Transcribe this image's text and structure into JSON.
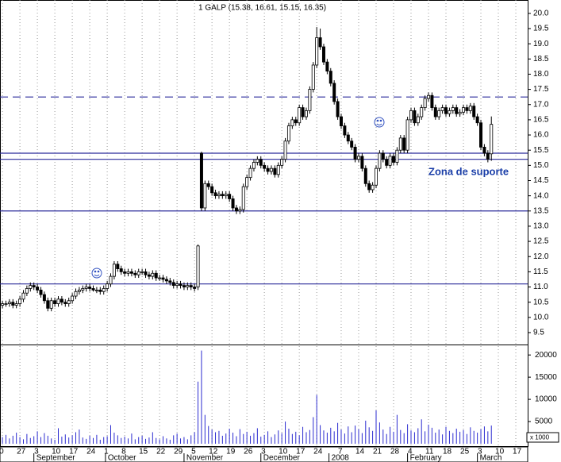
{
  "chart_data": {
    "type": "candlestick",
    "title": "1 GALP (15.38, 16.61, 15.15, 16.35)",
    "open": [
      10.4,
      10.45,
      10.45,
      10.5,
      10.4,
      10.45,
      10.6,
      10.8,
      10.95,
      11.05,
      11.0,
      10.9,
      10.75,
      10.55,
      10.3,
      10.55,
      10.45,
      10.6,
      10.5,
      10.45,
      10.55,
      10.7,
      10.85,
      10.9,
      10.95,
      11.0,
      10.95,
      10.9,
      10.9,
      10.85,
      10.95,
      11.1,
      11.35,
      11.75,
      11.6,
      11.5,
      11.45,
      11.5,
      11.45,
      11.4,
      11.5,
      11.5,
      11.4,
      11.35,
      11.45,
      11.3,
      11.3,
      11.25,
      11.2,
      11.15,
      11.05,
      11.1,
      11.05,
      11.0,
      11.05,
      11.0,
      11.0,
      15.4,
      13.6,
      14.4,
      14.3,
      14.1,
      14.0,
      14.05,
      14.0,
      14.05,
      13.9,
      13.6,
      13.5,
      13.55,
      14.3,
      14.6,
      14.9,
      15.1,
      15.2,
      15.0,
      14.9,
      14.8,
      14.9,
      14.7,
      15.0,
      15.2,
      15.8,
      16.3,
      16.5,
      16.4,
      16.9,
      16.6,
      16.8,
      17.5,
      18.3,
      19.2,
      18.9,
      18.4,
      18.1,
      17.7,
      17.1,
      16.6,
      16.3,
      16.0,
      15.8,
      15.6,
      15.2,
      15.3,
      14.9,
      14.4,
      14.2,
      14.35,
      14.9,
      15.4,
      15.2,
      15.0,
      15.3,
      15.1,
      15.5,
      15.9,
      15.5,
      16.5,
      16.8,
      16.4,
      16.6,
      16.9,
      17.2,
      17.3,
      16.9,
      16.6,
      16.8,
      16.9,
      16.7,
      16.8,
      16.9,
      16.7,
      16.75,
      16.9,
      16.8,
      16.95,
      16.6,
      16.4,
      15.6,
      15.4,
      15.38
    ],
    "high": [
      10.55,
      10.55,
      10.6,
      10.6,
      10.55,
      10.7,
      10.9,
      11.05,
      11.15,
      11.15,
      11.1,
      11.0,
      10.85,
      10.65,
      10.65,
      10.65,
      10.7,
      10.7,
      10.6,
      10.65,
      10.8,
      10.95,
      11.0,
      11.05,
      11.1,
      11.1,
      11.05,
      11.0,
      11.0,
      11.05,
      11.2,
      11.45,
      11.85,
      11.85,
      11.7,
      11.6,
      11.6,
      11.6,
      11.55,
      11.6,
      11.6,
      11.6,
      11.5,
      11.55,
      11.55,
      11.4,
      11.4,
      11.35,
      11.3,
      11.25,
      11.2,
      11.2,
      11.15,
      11.15,
      11.15,
      11.1,
      12.4,
      15.45,
      14.5,
      14.5,
      14.4,
      14.2,
      14.15,
      14.15,
      14.15,
      14.15,
      14.0,
      13.7,
      13.65,
      14.4,
      14.7,
      15.0,
      15.2,
      15.3,
      15.3,
      15.1,
      15.0,
      15.0,
      15.0,
      15.1,
      15.3,
      15.9,
      16.4,
      16.6,
      16.6,
      17.0,
      17.0,
      16.9,
      17.6,
      18.4,
      19.55,
      19.5,
      19.0,
      18.5,
      18.2,
      17.8,
      17.2,
      16.7,
      16.4,
      16.1,
      15.9,
      15.7,
      15.4,
      15.4,
      15.0,
      14.5,
      14.45,
      15.0,
      15.5,
      15.5,
      15.3,
      15.4,
      15.4,
      15.6,
      16.0,
      16.0,
      16.6,
      16.9,
      16.9,
      16.7,
      17.0,
      17.3,
      17.4,
      17.4,
      17.0,
      16.9,
      17.0,
      17.0,
      16.9,
      17.0,
      17.0,
      16.85,
      17.0,
      17.0,
      17.05,
      17.05,
      16.7,
      16.5,
      15.7,
      15.5,
      16.61
    ],
    "low": [
      10.3,
      10.35,
      10.35,
      10.3,
      10.3,
      10.35,
      10.5,
      10.7,
      10.85,
      10.9,
      10.8,
      10.65,
      10.45,
      10.2,
      10.2,
      10.35,
      10.35,
      10.4,
      10.35,
      10.35,
      10.45,
      10.6,
      10.75,
      10.8,
      10.85,
      10.85,
      10.85,
      10.8,
      10.75,
      10.75,
      10.85,
      11.0,
      11.25,
      11.5,
      11.4,
      11.35,
      11.35,
      11.35,
      11.3,
      11.3,
      11.4,
      11.3,
      11.25,
      11.25,
      11.2,
      11.2,
      11.15,
      11.1,
      11.05,
      10.95,
      10.95,
      10.95,
      10.9,
      10.9,
      10.9,
      10.85,
      10.9,
      13.5,
      13.5,
      14.2,
      14.0,
      13.9,
      13.9,
      13.9,
      13.9,
      13.8,
      13.5,
      13.4,
      13.4,
      13.45,
      14.2,
      14.5,
      14.8,
      15.0,
      14.9,
      14.8,
      14.7,
      14.7,
      14.6,
      14.6,
      14.9,
      15.1,
      15.7,
      16.2,
      16.3,
      16.3,
      16.5,
      16.5,
      16.7,
      17.4,
      18.2,
      18.8,
      18.3,
      18.0,
      17.6,
      17.0,
      16.5,
      16.2,
      15.9,
      15.7,
      15.5,
      15.1,
      15.1,
      14.8,
      14.3,
      14.1,
      14.1,
      14.25,
      14.8,
      15.1,
      14.9,
      14.9,
      15.0,
      15.0,
      15.4,
      15.4,
      15.4,
      16.4,
      16.3,
      16.3,
      16.5,
      16.8,
      17.1,
      16.8,
      16.5,
      16.5,
      16.7,
      16.6,
      16.6,
      16.7,
      16.6,
      16.6,
      16.65,
      16.7,
      16.7,
      16.5,
      16.3,
      15.5,
      15.3,
      15.1,
      15.15
    ],
    "close": [
      10.45,
      10.45,
      10.5,
      10.4,
      10.45,
      10.6,
      10.8,
      10.95,
      11.05,
      11.0,
      10.9,
      10.75,
      10.55,
      10.3,
      10.55,
      10.45,
      10.6,
      10.5,
      10.45,
      10.55,
      10.7,
      10.85,
      10.9,
      10.95,
      11.0,
      10.95,
      10.9,
      10.9,
      10.85,
      10.95,
      11.1,
      11.35,
      11.75,
      11.6,
      11.5,
      11.45,
      11.5,
      11.45,
      11.4,
      11.5,
      11.5,
      11.4,
      11.35,
      11.45,
      11.3,
      11.3,
      11.25,
      11.2,
      11.15,
      11.05,
      11.1,
      11.05,
      11.0,
      11.05,
      11.0,
      10.95,
      12.35,
      13.6,
      14.4,
      14.3,
      14.1,
      14.0,
      14.05,
      14.0,
      14.05,
      13.9,
      13.6,
      13.5,
      13.55,
      14.3,
      14.6,
      14.9,
      15.1,
      15.2,
      15.0,
      14.9,
      14.8,
      14.9,
      14.7,
      15.0,
      15.2,
      15.8,
      16.3,
      16.5,
      16.4,
      16.9,
      16.6,
      16.8,
      17.5,
      18.3,
      19.2,
      18.9,
      18.4,
      18.1,
      17.7,
      17.1,
      16.6,
      16.3,
      16.0,
      15.8,
      15.6,
      15.2,
      15.3,
      14.9,
      14.4,
      14.2,
      14.35,
      14.9,
      15.4,
      15.2,
      15.0,
      15.3,
      15.1,
      15.5,
      15.9,
      15.5,
      16.5,
      16.8,
      16.4,
      16.6,
      16.9,
      17.2,
      17.3,
      16.9,
      16.6,
      16.8,
      16.9,
      16.7,
      16.8,
      16.9,
      16.7,
      16.75,
      16.9,
      16.8,
      16.95,
      16.6,
      16.4,
      15.6,
      15.4,
      15.2,
      16.35
    ],
    "volume": [
      1500,
      2000,
      1200,
      1800,
      2500,
      1500,
      1000,
      2200,
      1300,
      1700,
      2800,
      1500,
      2400,
      1800,
      1200,
      900,
      3500,
      1600,
      2100,
      1400,
      1900,
      2600,
      3200,
      1400,
      1100,
      1800,
      1300,
      2000,
      900,
      1500,
      1700,
      4200,
      2500,
      1900,
      1300,
      1600,
      1200,
      2300,
      1000,
      1500,
      1800,
      1100,
      1400,
      2600,
      1300,
      1000,
      1700,
      1200,
      900,
      1900,
      2300,
      1200,
      1500,
      1000,
      1900,
      2600,
      14000,
      21000,
      6500,
      4000,
      3200,
      2600,
      2900,
      1800,
      2300,
      3400,
      2500,
      1700,
      3300,
      2200,
      2700,
      1800,
      2400,
      3500,
      1600,
      2000,
      2800,
      1500,
      2100,
      3000,
      2400,
      5000,
      3400,
      2200,
      2700,
      1900,
      3800,
      2600,
      3100,
      6000,
      11000,
      4200,
      3000,
      2500,
      3600,
      2800,
      4700,
      3200,
      2300,
      3900,
      2600,
      4100,
      3300,
      2400,
      5200,
      3700,
      2900,
      7500,
      4800,
      3200,
      2200,
      3800,
      2700,
      6500,
      3100,
      2400,
      4400,
      3000,
      2600,
      3500,
      5500,
      2800,
      4300,
      3600,
      2500,
      3200,
      2100,
      3800,
      2900,
      2400,
      3400,
      2700,
      3100,
      2200,
      3700,
      2900,
      2500,
      3300,
      3900,
      2800,
      4100
    ],
    "up_color": "#ffffff",
    "down_color": "#000000",
    "volume_color": "#2b2bd0",
    "level_color": "#2a2a9a",
    "xlim": [
      -0.7,
      150.4
    ],
    "xticks": [
      {
        "value": 0,
        "label": "0"
      },
      {
        "value": 5,
        "label": "27"
      },
      {
        "value": 10,
        "label": "3"
      },
      {
        "value": 15,
        "label": "10"
      },
      {
        "value": 20,
        "label": "17"
      },
      {
        "value": 25,
        "label": "24"
      },
      {
        "value": 30,
        "label": "1"
      },
      {
        "value": 35,
        "label": "8"
      },
      {
        "value": 40,
        "label": "15"
      },
      {
        "value": 45,
        "label": "22"
      },
      {
        "value": 50,
        "label": "29"
      },
      {
        "value": 55,
        "label": "5"
      },
      {
        "value": 60,
        "label": "12"
      },
      {
        "value": 65,
        "label": "19"
      },
      {
        "value": 70,
        "label": "26"
      },
      {
        "value": 75,
        "label": "3"
      },
      {
        "value": 80,
        "label": "10"
      },
      {
        "value": 85,
        "label": "17"
      },
      {
        "value": 90,
        "label": "24"
      },
      {
        "value": 97,
        "label": "7"
      },
      {
        "value": 102,
        "label": "14"
      },
      {
        "value": 107,
        "label": "21"
      },
      {
        "value": 112,
        "label": "28"
      },
      {
        "value": 117,
        "label": "4"
      },
      {
        "value": 122,
        "label": "11"
      },
      {
        "value": 127,
        "label": "18"
      },
      {
        "value": 132,
        "label": "25"
      },
      {
        "value": 137,
        "label": "3"
      },
      {
        "value": 142,
        "label": "10"
      },
      {
        "value": 147,
        "label": "17"
      }
    ],
    "month_ticks": [
      {
        "value": 9,
        "label": "September"
      },
      {
        "value": 29.5,
        "label": "October"
      },
      {
        "value": 52,
        "label": "November"
      },
      {
        "value": 74,
        "label": "December"
      },
      {
        "value": 93.5,
        "label": "2008"
      },
      {
        "value": 116,
        "label": "February"
      },
      {
        "value": 136,
        "label": "March"
      }
    ],
    "ylim": [
      9.16,
      20.44
    ],
    "yticks": [
      {
        "value": 9.5,
        "label": "9.5"
      },
      {
        "value": 10,
        "label": "10.0"
      },
      {
        "value": 10.5,
        "label": "10.5"
      },
      {
        "value": 11,
        "label": "11.0"
      },
      {
        "value": 11.5,
        "label": "11.5"
      },
      {
        "value": 12,
        "label": "12.0"
      },
      {
        "value": 12.5,
        "label": "12.5"
      },
      {
        "value": 13,
        "label": "13.0"
      },
      {
        "value": 13.5,
        "label": "13.5"
      },
      {
        "value": 14,
        "label": "14.0"
      },
      {
        "value": 14.5,
        "label": "14.5"
      },
      {
        "value": 15,
        "label": "15.0"
      },
      {
        "value": 15.5,
        "label": "15.5"
      },
      {
        "value": 16,
        "label": "16.0"
      },
      {
        "value": 16.5,
        "label": "16.5"
      },
      {
        "value": 17,
        "label": "17.0"
      },
      {
        "value": 17.5,
        "label": "17.5"
      },
      {
        "value": 18,
        "label": "18.0"
      },
      {
        "value": 18.5,
        "label": "18.5"
      },
      {
        "value": 19,
        "label": "19.0"
      },
      {
        "value": 19.5,
        "label": "19.5"
      },
      {
        "value": 20,
        "label": "20.0"
      }
    ],
    "volume_lim": [
      0,
      22000
    ],
    "volume_ticks": [
      5000,
      10000,
      15000,
      20000
    ],
    "volume_unit": "x 1000",
    "levels": [
      {
        "value": 17.25,
        "style": "dashed"
      },
      {
        "value": 15.4,
        "style": "solid"
      },
      {
        "value": 15.2,
        "style": "solid"
      },
      {
        "value": 13.5,
        "style": "solid"
      },
      {
        "value": 11.1,
        "style": "solid"
      }
    ],
    "annotation": "Zona de suporte",
    "grid": true
  }
}
